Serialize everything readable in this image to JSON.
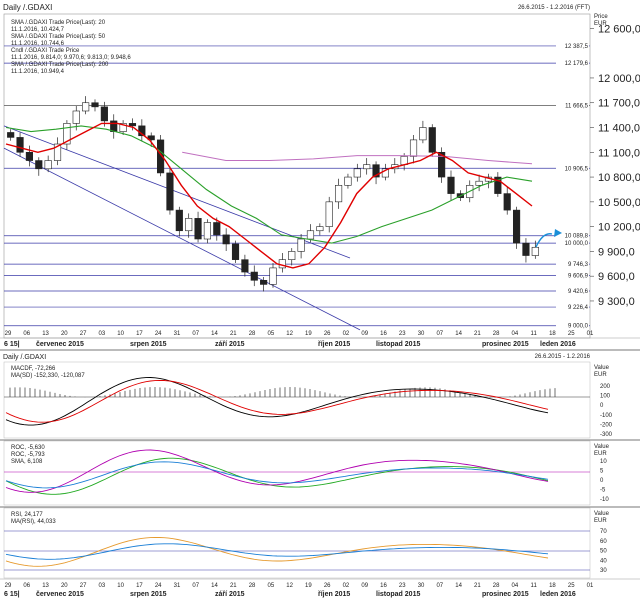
{
  "header": {
    "title": "Daily /.GDAXI",
    "date_range": "26.6.2015 - 1.2.2016 (FFT)"
  },
  "legend": {
    "sma20": {
      "label": "SMA /.GDAXI Trade Price(Last): 20",
      "value": "11.1.2016, 10.424,7",
      "color": "#e00000"
    },
    "sma50": {
      "label": "SMA /.GDAXI Trade Price(Last): 50",
      "value": "11.1.2016, 10.744,6",
      "color": "#22aa22"
    },
    "candle": {
      "label": "Cndl /.GDAXI Trade Price",
      "value": "11.1.2016, 9.814,0; 9.970,6; 9.813,0; 9.948,6"
    },
    "sma200": {
      "label": "SMA /.GDAXI Trade Price(Last): 200",
      "value": "11.1.2016, 10.949,4",
      "color": "#b050b0"
    }
  },
  "price_axis": {
    "unit_label_1": "Price",
    "unit_label_2": "EUR",
    "ticks": [
      "12 600,0",
      "12 000,0",
      "11 700,0",
      "11 400,0",
      "11 100,0",
      "10 800,0",
      "10 500,0",
      "10 200,0",
      "9 900,0",
      "9 600,0",
      "9 300,0"
    ]
  },
  "level_labels": [
    "12 387,5",
    "12 179,6",
    "11 666,5",
    "10 906,5",
    "10 089,8",
    "10 000,0",
    "9 746,3",
    "9 606,9",
    "9 420,6",
    "9 226,4",
    "9 000,0"
  ],
  "date_axis": {
    "days": [
      "29",
      "06",
      "13",
      "20",
      "27",
      "03",
      "10",
      "17",
      "24",
      "31",
      "07",
      "14",
      "21",
      "28",
      "05",
      "12",
      "19",
      "26",
      "02",
      "09",
      "16",
      "23",
      "30",
      "07",
      "14",
      "21",
      "28",
      "04",
      "11",
      "18",
      "25",
      "01"
    ],
    "months": [
      "6 15|",
      "červenec 2015",
      "srpen 2015",
      "září 2015",
      "říjen 2015",
      "listopad 2015",
      "prosinec 2015",
      "leden 2016"
    ]
  },
  "macd_panel": {
    "title": "Daily /.GDAXI",
    "date_range": "26.6.2015 - 1.2.2016",
    "legend": [
      {
        "label": "MACDF, -72,266",
        "color": "#000000"
      },
      {
        "label": "MA(SD) -152,330, -120,087",
        "color": "#e00000"
      }
    ],
    "unit": "Value",
    "unit2": "EUR",
    "ticks": [
      "200",
      "100",
      "0",
      "-100",
      "-200",
      "-300"
    ]
  },
  "roc_panel": {
    "legend": [
      {
        "label": "ROC, -5,630",
        "color": "#22aa22"
      },
      {
        "label": "ROC, -5,793",
        "color": "#b000b0"
      },
      {
        "label": "SMA, 6,108",
        "color": "#1a7fd6"
      }
    ],
    "unit": "Value",
    "unit2": "EUR",
    "ticks": [
      "10",
      "5",
      "0",
      "-5",
      "-10"
    ]
  },
  "rsi_panel": {
    "legend": [
      {
        "label": "RSI, 24,177",
        "color": "#e69a2e"
      },
      {
        "label": "MA(RSI), 44,033",
        "color": "#1a7fd6"
      }
    ],
    "unit": "Value",
    "unit2": "EUR",
    "ticks": [
      "70",
      "60",
      "50",
      "40",
      "30"
    ]
  },
  "chart_data": {
    "type": "candlestick",
    "series": [
      {
        "name": "Cndl /.GDAXI Trade Price",
        "close": [
          11280,
          11100,
          11000,
          10900,
          11000,
          11200,
          11450,
          11600,
          11700,
          11650,
          11480,
          11350,
          11450,
          11420,
          11300,
          11250,
          10850,
          10400,
          10150,
          10300,
          10050,
          10250,
          10100,
          9990,
          9800,
          9650,
          9550,
          9500,
          9700,
          9800,
          9900,
          10050,
          10150,
          10200,
          10500,
          10700,
          10800,
          10900,
          10950,
          10800,
          10900,
          10950,
          11050,
          11250,
          11400,
          11100,
          10800,
          10600,
          10550,
          10700,
          10750,
          10800,
          10600,
          10400,
          10000,
          9850,
          9950
        ]
      },
      {
        "name": "SMA /.GDAXI Trade Price(Last): 20",
        "values": [
          11200,
          11150,
          11100,
          11150,
          11250,
          11350,
          11450,
          11450,
          11400,
          11250,
          11000,
          10700,
          10450,
          10300,
          10200,
          10050,
          9900,
          9750,
          9700,
          9750,
          9950,
          10250,
          10600,
          10800,
          10900,
          10950,
          11000,
          11100,
          11000,
          10850,
          10800,
          10750,
          10600,
          10450
        ]
      },
      {
        "name": "SMA /.GDAXI Trade Price(Last): 50",
        "values": [
          11400,
          11350,
          11380,
          11420,
          11380,
          11300,
          11150,
          10900,
          10650,
          10450,
          10300,
          10100,
          10050,
          10000,
          10080,
          10200,
          10300,
          10400,
          10550,
          10700,
          10800,
          10750
        ]
      },
      {
        "name": "SMA /.GDAXI Trade Price(Last): 200",
        "values": [
          11100,
          11000,
          11000,
          11020,
          11060,
          11060,
          11050,
          11000,
          10960
        ]
      }
    ],
    "y_axis_ticks": [
      12600,
      12000,
      11700,
      11400,
      11100,
      10800,
      10500,
      10200,
      9900,
      9600,
      9300
    ],
    "horizontal_levels": [
      12387.5,
      12179.6,
      11666.5,
      10906.5,
      10089.8,
      10000.0,
      9746.3,
      9606.9,
      9420.6,
      9226.4,
      9000.0
    ],
    "ylim": [
      8900,
      12750
    ],
    "grid": false,
    "legend_position": "top-left"
  }
}
